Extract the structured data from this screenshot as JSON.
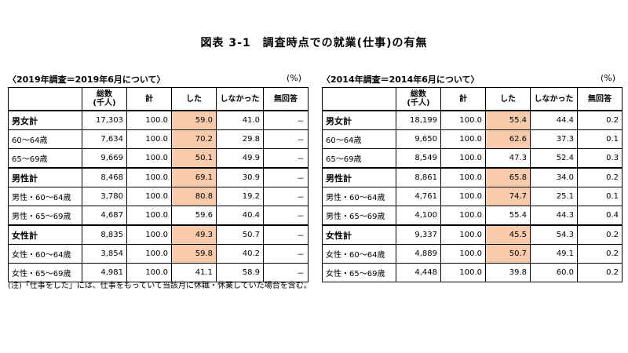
{
  "title": "図表 3-1　調査時点での就業(仕事)の有無",
  "unit": "(%)",
  "headers": [
    "",
    "総数\n(千人)",
    "計",
    "した",
    "しなかった",
    "無回答"
  ],
  "highlight_color": "#f8cbad",
  "panels": [
    {
      "caption": "〈2019年調査＝2019年6月について〉",
      "rows": [
        {
          "label": "男女計",
          "total": "17,303",
          "sum": "100.0",
          "did": "59.0",
          "didnot": "41.0",
          "na": "－",
          "bold": true,
          "hl": true
        },
        {
          "label": "60～64歳",
          "total": "7,634",
          "sum": "100.0",
          "did": "70.2",
          "didnot": "29.8",
          "na": "－",
          "hl": true
        },
        {
          "label": "65～69歳",
          "total": "9,669",
          "sum": "100.0",
          "did": "50.1",
          "didnot": "49.9",
          "na": "－",
          "hl": true
        },
        {
          "label": "男性計",
          "total": "8,468",
          "sum": "100.0",
          "did": "69.1",
          "didnot": "30.9",
          "na": "－",
          "bold": true,
          "hl": true
        },
        {
          "label": "男性・60～64歳",
          "total": "3,780",
          "sum": "100.0",
          "did": "80.8",
          "didnot": "19.2",
          "na": "－",
          "hl": true
        },
        {
          "label": "男性・65～69歳",
          "total": "4,687",
          "sum": "100.0",
          "did": "59.6",
          "didnot": "40.4",
          "na": "－",
          "hl": false
        },
        {
          "label": "女性計",
          "total": "8,835",
          "sum": "100.0",
          "did": "49.3",
          "didnot": "50.7",
          "na": "－",
          "bold": true,
          "hl": true
        },
        {
          "label": "女性・60～64歳",
          "total": "3,854",
          "sum": "100.0",
          "did": "59.8",
          "didnot": "40.2",
          "na": "－",
          "hl": true
        },
        {
          "label": "女性・65～69歳",
          "total": "4,981",
          "sum": "100.0",
          "did": "41.1",
          "didnot": "58.9",
          "na": "－",
          "hl": false
        }
      ]
    },
    {
      "caption": "〈2014年調査＝2014年6月について〉",
      "rows": [
        {
          "label": "男女計",
          "total": "18,199",
          "sum": "100.0",
          "did": "55.4",
          "didnot": "44.4",
          "na": "0.2",
          "bold": true,
          "hl": true
        },
        {
          "label": "60～64歳",
          "total": "9,650",
          "sum": "100.0",
          "did": "62.6",
          "didnot": "37.3",
          "na": "0.1",
          "hl": true
        },
        {
          "label": "65～69歳",
          "total": "8,549",
          "sum": "100.0",
          "did": "47.3",
          "didnot": "52.4",
          "na": "0.3",
          "hl": false
        },
        {
          "label": "男性計",
          "total": "8,861",
          "sum": "100.0",
          "did": "65.8",
          "didnot": "34.0",
          "na": "0.2",
          "bold": true,
          "hl": true
        },
        {
          "label": "男性・60～64歳",
          "total": "4,761",
          "sum": "100.0",
          "did": "74.7",
          "didnot": "25.1",
          "na": "0.1",
          "hl": true
        },
        {
          "label": "男性・65～69歳",
          "total": "4,100",
          "sum": "100.0",
          "did": "55.4",
          "didnot": "44.3",
          "na": "0.4",
          "hl": false
        },
        {
          "label": "女性計",
          "total": "9,337",
          "sum": "100.0",
          "did": "45.5",
          "didnot": "54.3",
          "na": "0.2",
          "bold": true,
          "hl": true
        },
        {
          "label": "女性・60～64歳",
          "total": "4,889",
          "sum": "100.0",
          "did": "50.7",
          "didnot": "49.1",
          "na": "0.2",
          "hl": true
        },
        {
          "label": "女性・65～69歳",
          "total": "4,448",
          "sum": "100.0",
          "did": "39.8",
          "didnot": "60.0",
          "na": "0.2",
          "hl": false
        }
      ]
    }
  ],
  "note": "(注)「仕事をした」には、仕事をもっていて当該月に休職・休業していた場合を含む。"
}
